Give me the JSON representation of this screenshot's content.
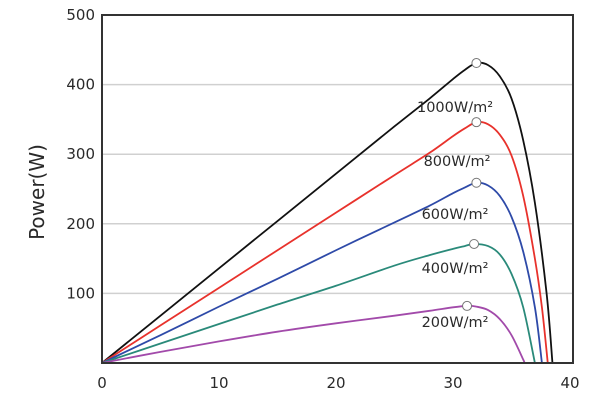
{
  "chart_data": {
    "type": "line",
    "title": "",
    "xlabel": "",
    "ylabel": "Power(W)",
    "xlim": [
      0,
      40
    ],
    "ylim": [
      0,
      500
    ],
    "xticks": [
      0,
      10,
      20,
      30,
      40
    ],
    "yticks": [
      100,
      200,
      300,
      400,
      500
    ],
    "grid": "horizontal",
    "series": [
      {
        "name": "1000W/m²",
        "color": "#111111",
        "x": [
          0,
          5,
          10,
          15,
          20,
          25,
          28,
          30,
          31,
          32,
          33,
          34,
          35,
          36,
          37,
          38,
          38.5
        ],
        "y": [
          0,
          68,
          136,
          204,
          272,
          340,
          380,
          408,
          421,
          431,
          428,
          412,
          380,
          320,
          230,
          100,
          0
        ],
        "mpp": [
          32,
          431
        ]
      },
      {
        "name": "800W/m²",
        "color": "#e8322c",
        "x": [
          0,
          5,
          10,
          15,
          20,
          25,
          28,
          30,
          31,
          32,
          33,
          34,
          35,
          36,
          37,
          37.6,
          38.1
        ],
        "y": [
          0,
          54,
          108,
          162,
          216,
          270,
          302,
          326,
          337,
          346,
          343,
          328,
          298,
          240,
          150,
          80,
          0
        ],
        "mpp": [
          32,
          346
        ]
      },
      {
        "name": "600W/m²",
        "color": "#2e4aa8",
        "x": [
          0,
          5,
          10,
          15,
          20,
          25,
          28,
          30,
          31,
          32,
          33,
          34,
          35,
          36,
          37,
          37.6
        ],
        "y": [
          0,
          40,
          81,
          121,
          162,
          202,
          226,
          244,
          252,
          259,
          255,
          240,
          210,
          160,
          80,
          0
        ],
        "mpp": [
          32,
          259
        ]
      },
      {
        "name": "400W/m²",
        "color": "#2a8a7a",
        "x": [
          0,
          5,
          10,
          15,
          20,
          25,
          28,
          30,
          31,
          31.8,
          33,
          34,
          35,
          36,
          37
        ],
        "y": [
          0,
          28,
          56,
          84,
          111,
          140,
          155,
          164,
          168,
          171,
          168,
          156,
          128,
          80,
          0
        ],
        "mpp": [
          31.8,
          171
        ]
      },
      {
        "name": "200W/m²",
        "color": "#a24aaa",
        "x": [
          0,
          5,
          10,
          15,
          20,
          25,
          28,
          30,
          31.2,
          32,
          33,
          34,
          35,
          36,
          36.1
        ],
        "y": [
          0,
          16,
          31,
          45,
          57,
          68,
          75,
          80,
          82,
          81,
          76,
          63,
          40,
          5,
          0
        ],
        "mpp": [
          31.2,
          82
        ]
      }
    ]
  }
}
